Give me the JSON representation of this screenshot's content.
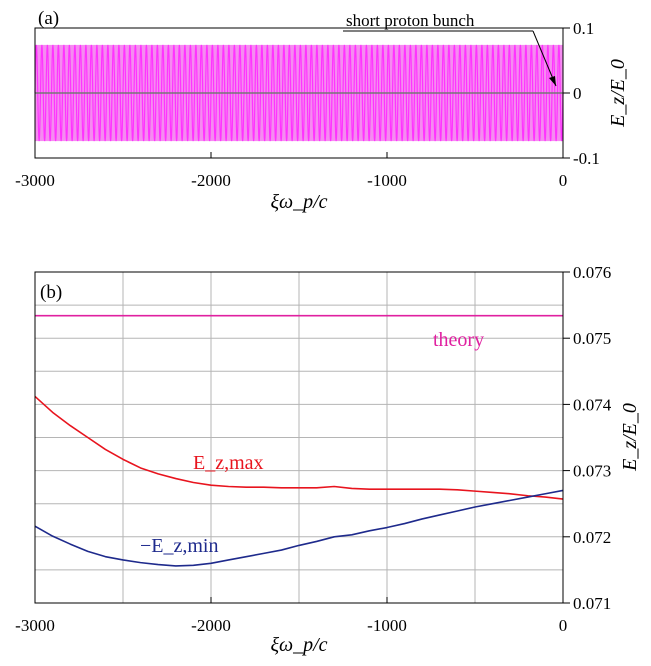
{
  "chart_data": [
    {
      "panel": "(a)",
      "type": "line",
      "xlabel": "ξω_p/c",
      "ylabel": "E_z/E_0",
      "xlim": [
        -3000,
        0
      ],
      "ylim": [
        -0.1,
        0.1
      ],
      "x_ticks": [
        "-3000",
        "-2000",
        "-1000",
        "0"
      ],
      "y_ticks": [
        "-0.1",
        "0",
        "0.1"
      ],
      "annotation": "short proton bunch",
      "series": [
        {
          "color": "#ff33ff",
          "style": "oscillation",
          "x_range": [
            -3000,
            0
          ],
          "amplitude": 0.074,
          "oscillations": 96
        },
        {
          "color": "#777777",
          "style": "baseline",
          "values": [
            [
              -3000,
              0
            ],
            [
              0,
              0
            ]
          ]
        }
      ]
    },
    {
      "panel": "(b)",
      "type": "line",
      "xlabel": "ξω_p/c",
      "ylabel": "E_z/E_0",
      "xlim": [
        -3000,
        0
      ],
      "ylim": [
        0.071,
        0.076
      ],
      "x_ticks": [
        "-3000",
        "-2000",
        "-1000",
        "0"
      ],
      "y_ticks": [
        "0.071",
        "0.072",
        "0.073",
        "0.074",
        "0.075",
        "0.076"
      ],
      "grid": true,
      "series": [
        {
          "name": "theory",
          "color": "#e020a0",
          "points": [
            [
              -3000,
              0.07534
            ],
            [
              0,
              0.07534
            ]
          ]
        },
        {
          "name": "E_z,max",
          "color": "#e8141e",
          "points": [
            [
              -3000,
              0.07412
            ],
            [
              -2900,
              0.07388
            ],
            [
              -2800,
              0.07368
            ],
            [
              -2700,
              0.0735
            ],
            [
              -2600,
              0.07332
            ],
            [
              -2500,
              0.07317
            ],
            [
              -2400,
              0.07304
            ],
            [
              -2300,
              0.07295
            ],
            [
              -2200,
              0.07288
            ],
            [
              -2100,
              0.07282
            ],
            [
              -2000,
              0.07278
            ],
            [
              -1900,
              0.07276
            ],
            [
              -1800,
              0.07275
            ],
            [
              -1700,
              0.07275
            ],
            [
              -1600,
              0.07274
            ],
            [
              -1500,
              0.07274
            ],
            [
              -1400,
              0.07274
            ],
            [
              -1300,
              0.07276
            ],
            [
              -1200,
              0.07273
            ],
            [
              -1100,
              0.07272
            ],
            [
              -1000,
              0.07272
            ],
            [
              -900,
              0.07272
            ],
            [
              -800,
              0.07272
            ],
            [
              -700,
              0.07272
            ],
            [
              -600,
              0.07271
            ],
            [
              -500,
              0.07269
            ],
            [
              -400,
              0.07267
            ],
            [
              -300,
              0.07265
            ],
            [
              -200,
              0.07262
            ],
            [
              -100,
              0.0726
            ],
            [
              0,
              0.07257
            ]
          ]
        },
        {
          "name": "−E_z,min",
          "color": "#1e2a8c",
          "points": [
            [
              -3000,
              0.07216
            ],
            [
              -2900,
              0.07201
            ],
            [
              -2800,
              0.07189
            ],
            [
              -2700,
              0.07178
            ],
            [
              -2600,
              0.0717
            ],
            [
              -2500,
              0.07165
            ],
            [
              -2400,
              0.07161
            ],
            [
              -2300,
              0.07158
            ],
            [
              -2200,
              0.07156
            ],
            [
              -2100,
              0.07157
            ],
            [
              -2000,
              0.0716
            ],
            [
              -1900,
              0.07165
            ],
            [
              -1800,
              0.0717
            ],
            [
              -1700,
              0.07175
            ],
            [
              -1600,
              0.0718
            ],
            [
              -1500,
              0.07187
            ],
            [
              -1400,
              0.07193
            ],
            [
              -1300,
              0.072
            ],
            [
              -1200,
              0.07203
            ],
            [
              -1100,
              0.07209
            ],
            [
              -1000,
              0.07214
            ],
            [
              -900,
              0.0722
            ],
            [
              -800,
              0.07227
            ],
            [
              -700,
              0.07233
            ],
            [
              -600,
              0.07239
            ],
            [
              -500,
              0.07245
            ],
            [
              -400,
              0.0725
            ],
            [
              -300,
              0.07255
            ],
            [
              -200,
              0.0726
            ],
            [
              -100,
              0.07265
            ],
            [
              0,
              0.0727
            ]
          ]
        }
      ]
    }
  ]
}
